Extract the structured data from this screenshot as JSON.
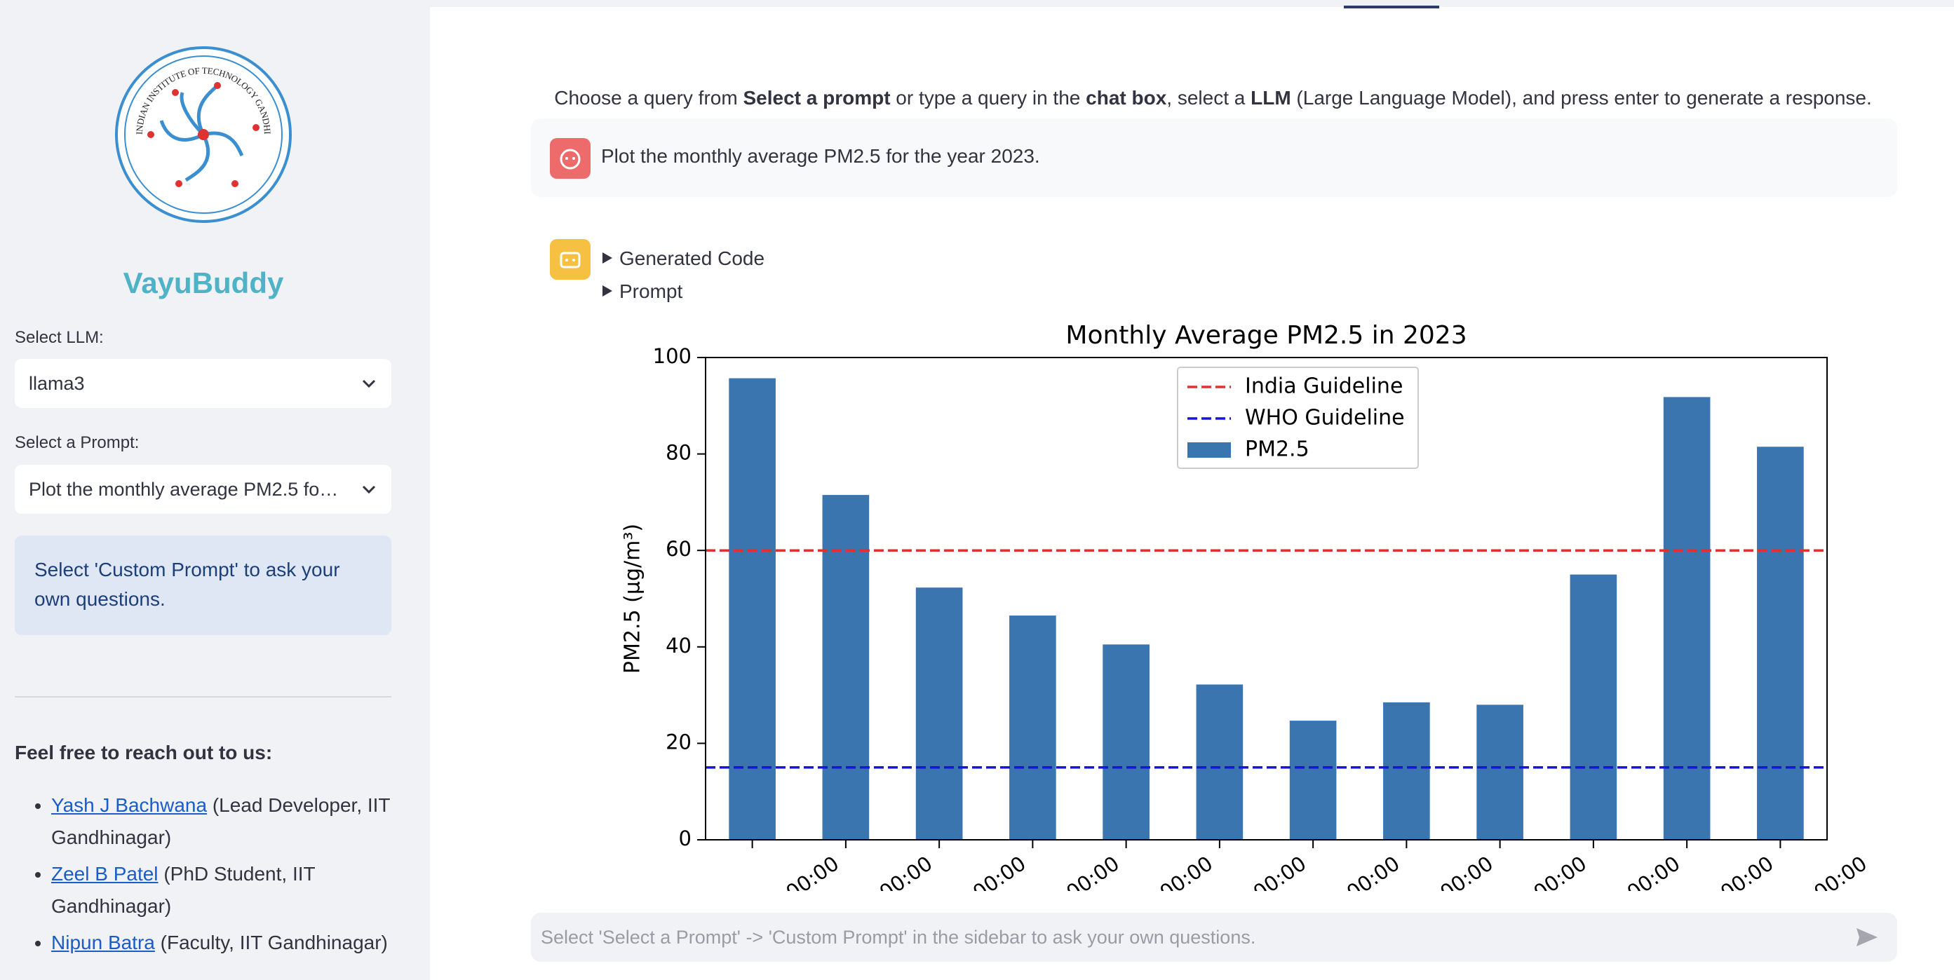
{
  "sidebar": {
    "logo_text": "INDIAN INSTITUTE OF TECHNOLOGY GANDHINAGAR",
    "title": "VayuBuddy",
    "llm_label": "Select LLM:",
    "llm_value": "llama3",
    "prompt_label": "Select a Prompt:",
    "prompt_value": "Plot the monthly average PM2.5 fo…",
    "info": "Select 'Custom Prompt' to ask your own questions.",
    "contact_heading": "Feel free to reach out to us:",
    "contacts": [
      {
        "name": "Yash J Bachwana",
        "role": "(Lead Developer, IIT Gandhinagar)"
      },
      {
        "name": "Zeel B Patel",
        "role": "(PhD Student, IIT Gandhinagar)"
      },
      {
        "name": "Nipun Batra",
        "role": "(Faculty, IIT Gandhinagar)"
      }
    ]
  },
  "main": {
    "instructions": [
      {
        "text": "Choose a query from ",
        "bold": false
      },
      {
        "text": "Select a prompt",
        "bold": true
      },
      {
        "text": " or type a query in the ",
        "bold": false
      },
      {
        "text": "chat box",
        "bold": true
      },
      {
        "text": ", select a ",
        "bold": false
      },
      {
        "text": "LLM",
        "bold": true
      },
      {
        "text": " (Large Language Model), and press enter to generate a response.",
        "bold": false
      }
    ],
    "user_message": "Plot the monthly average PM2.5 for the year 2023.",
    "expanders": [
      "Generated Code",
      "Prompt"
    ],
    "chat_placeholder": "Select 'Select a Prompt' -> 'Custom Prompt' in the sidebar to ask your own questions."
  },
  "chart_data": {
    "type": "bar",
    "title": "Monthly Average PM2.5 in 2023",
    "y_label": "PM2.5 (µg/m³)",
    "categories": [
      "00:00",
      "00:00",
      "00:00",
      "00:00",
      "00:00",
      "00:00",
      "00:00",
      "00:00",
      "00:00",
      "00:00",
      "00:00",
      "00:00"
    ],
    "series": [
      {
        "name": "PM2.5",
        "color": "#3a75b0",
        "values": [
          95.7,
          71.5,
          52.3,
          46.5,
          40.5,
          32.2,
          24.7,
          28.5,
          28.0,
          55.0,
          91.8,
          81.5
        ]
      }
    ],
    "hlines": [
      {
        "name": "India Guideline",
        "value": 60,
        "color": "#e03030"
      },
      {
        "name": "WHO Guideline",
        "value": 15,
        "color": "#1515dd"
      }
    ],
    "ylim": [
      0,
      100
    ],
    "yticks": [
      0,
      20,
      40,
      60,
      80,
      100
    ],
    "legend": "upper center"
  }
}
